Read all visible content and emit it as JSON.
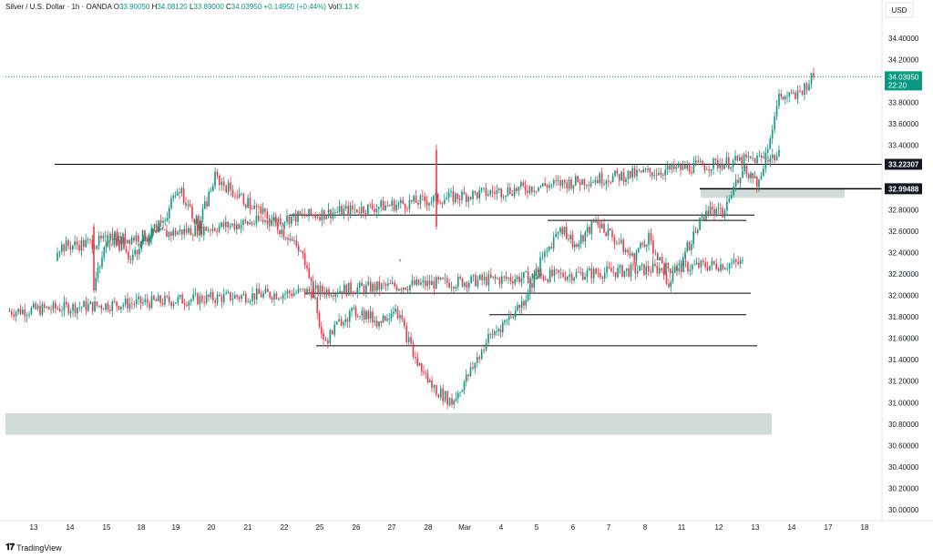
{
  "header": {
    "symbol": "Silver / U.S. Dollar · 1h · OANDA",
    "open_label": "O",
    "open": "33.90050",
    "high_label": "H",
    "high": "34.08120",
    "low_label": "L",
    "low": "33.89000",
    "close_label": "C",
    "close": "34.03950",
    "change": "+0.14950 (+0.44%)",
    "volume_label": "Vol",
    "volume": "3.13 K"
  },
  "price_scale": {
    "currency": "USD",
    "current_price": "34.03950",
    "countdown": "22:20"
  },
  "footer": {
    "brand": "TradingView"
  },
  "colors": {
    "up": "#089981",
    "down": "#f23645",
    "zone": "#d1dbd8",
    "grid_text": "#131722",
    "last_price": "#089981",
    "level_label": "#131722"
  },
  "chart_data": {
    "type": "candlestick",
    "instrument": "Silver / U.S. Dollar",
    "interval": "1h",
    "source": "OANDA",
    "ylim": [
      29.9,
      34.6
    ],
    "yticks": [
      "30.00000",
      "30.20000",
      "30.40000",
      "30.60000",
      "30.80000",
      "31.00000",
      "31.20000",
      "31.40000",
      "31.60000",
      "31.80000",
      "32.00000",
      "32.20000",
      "32.40000",
      "32.60000",
      "32.80000",
      "33.00000",
      "33.20000",
      "33.40000",
      "33.60000",
      "33.80000",
      "34.00000",
      "34.20000",
      "34.40000"
    ],
    "xticks": [
      "13",
      "14",
      "15",
      "18",
      "19",
      "20",
      "21",
      "22",
      "25",
      "26",
      "27",
      "28",
      "Mar",
      "4",
      "5",
      "6",
      "7",
      "8",
      "11",
      "12",
      "13",
      "14",
      "17",
      "18"
    ],
    "price_path": [
      [
        "13",
        31.85
      ],
      [
        "13",
        32.3
      ],
      [
        "14",
        32.45
      ],
      [
        "14",
        33.3
      ],
      [
        "15",
        32.1
      ],
      [
        "15",
        32.6
      ],
      [
        "18",
        32.35
      ],
      [
        "19",
        32.7
      ],
      [
        "19",
        33.0
      ],
      [
        "20",
        32.65
      ],
      [
        "20",
        33.1
      ],
      [
        "21",
        32.95
      ],
      [
        "22",
        32.7
      ],
      [
        "22",
        32.55
      ],
      [
        "25",
        32.3
      ],
      [
        "25",
        31.55
      ],
      [
        "26",
        31.8
      ],
      [
        "26",
        31.85
      ],
      [
        "27",
        31.75
      ],
      [
        "27",
        31.9
      ],
      [
        "28",
        31.4
      ],
      [
        "28",
        31.15
      ],
      [
        "Mar",
        31.0
      ],
      [
        "Mar",
        31.25
      ],
      [
        "4",
        31.6
      ],
      [
        "4",
        31.75
      ],
      [
        "5",
        31.95
      ],
      [
        "5",
        32.3
      ],
      [
        "6",
        32.65
      ],
      [
        "6",
        32.45
      ],
      [
        "7",
        32.7
      ],
      [
        "7",
        32.55
      ],
      [
        "8",
        32.35
      ],
      [
        "8",
        32.55
      ],
      [
        "11",
        32.1
      ],
      [
        "11",
        32.4
      ],
      [
        "12",
        32.8
      ],
      [
        "12",
        32.75
      ],
      [
        "13",
        33.2
      ],
      [
        "13",
        33.05
      ],
      [
        "14",
        33.85
      ],
      [
        "14",
        33.85
      ],
      [
        "14",
        34.04
      ]
    ],
    "horizontal_levels": [
      {
        "price": 33.22307,
        "label": "33.22307"
      },
      {
        "price": 32.99488,
        "label": "32.99488"
      },
      {
        "price": 32.75
      },
      {
        "price": 32.7
      },
      {
        "price": 32.02
      },
      {
        "price": 31.82
      },
      {
        "price": 31.53
      }
    ],
    "zones": [
      {
        "low": 30.7,
        "high": 30.9
      },
      {
        "low": 32.91,
        "high": 32.99
      }
    ],
    "last_price": 34.0395
  }
}
